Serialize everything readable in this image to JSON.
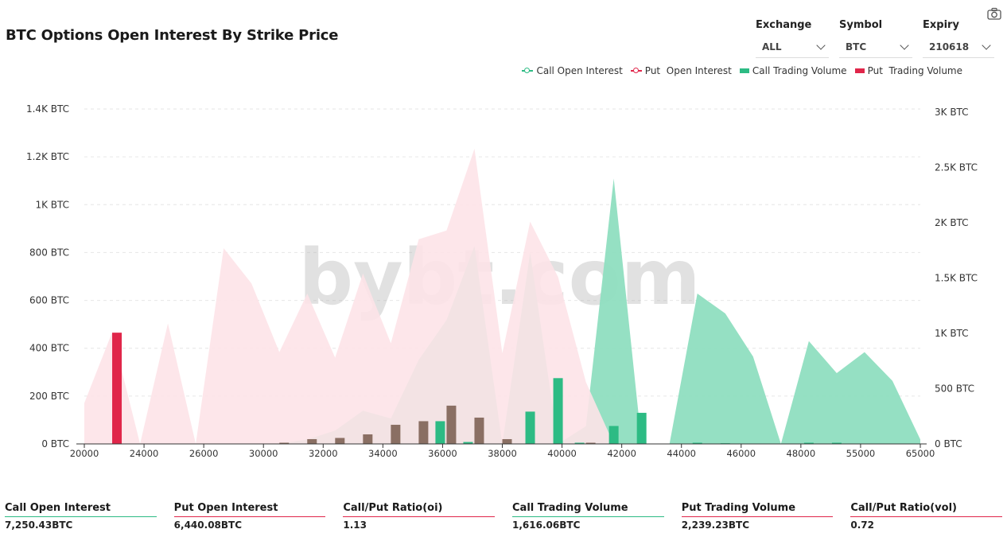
{
  "header": {
    "title": "BTC Options Open Interest By Strike Price"
  },
  "filters": [
    {
      "label": "Exchange",
      "value": "ALL"
    },
    {
      "label": "Symbol",
      "value": "BTC"
    },
    {
      "label": "Expiry",
      "value": "210618"
    }
  ],
  "toolbar": {
    "icon": "camera-icon"
  },
  "colors": {
    "call": "#2dbb84",
    "call_area": "#8fdec0",
    "put": "#e0264a",
    "put_area": "#fde3e8",
    "overlap": "#8a6f63"
  },
  "watermark": "bybt.com",
  "legend": [
    {
      "label": "Call Open Interest",
      "kind": "line",
      "color": "#2dbb84"
    },
    {
      "label": "Put  Open Interest",
      "kind": "line",
      "color": "#e0264a"
    },
    {
      "label": "Call Trading Volume",
      "kind": "box",
      "color": "#2dbb84"
    },
    {
      "label": "Put  Trading Volume",
      "kind": "box",
      "color": "#e0264a"
    }
  ],
  "chart_data": {
    "type": "area",
    "x_tick_labels": [
      "20000",
      "24000",
      "26000",
      "30000",
      "32000",
      "34000",
      "36000",
      "38000",
      "40000",
      "42000",
      "44000",
      "46000",
      "48000",
      "55000",
      "65000"
    ],
    "strikes": [
      "20000",
      "23000",
      "24000",
      "25000",
      "26000",
      "29000",
      "30000",
      "31000",
      "32000",
      "33000",
      "34000",
      "35000",
      "36000",
      "37000",
      "38000",
      "38500",
      "39000",
      "40000",
      "40500",
      "41000",
      "42000",
      "43000",
      "44000",
      "45000",
      "46000",
      "47000",
      "48000",
      "50000",
      "52000",
      "60000",
      "65000"
    ],
    "y_left": {
      "unit": "BTC",
      "ticks": [
        "0 BTC",
        "200 BTC",
        "400 BTC",
        "600 BTC",
        "800 BTC",
        "1K BTC",
        "1.2K BTC",
        "1.4K BTC"
      ],
      "ylim": [
        0,
        1400
      ]
    },
    "y_right": {
      "unit": "BTC",
      "ticks": [
        "0 BTC",
        "500 BTC",
        "1K BTC",
        "1.5K BTC",
        "2K BTC",
        "2.5K BTC",
        "3K BTC"
      ],
      "ylim": [
        0,
        3000
      ]
    },
    "series": [
      {
        "name": "Call Open Interest",
        "kind": "area",
        "axis": "right",
        "values": [
          0,
          0,
          0,
          0,
          0,
          0,
          0,
          2,
          40,
          120,
          300,
          230,
          760,
          1120,
          1790,
          0,
          1730,
          0,
          160,
          2400,
          0,
          0,
          1360,
          1180,
          790,
          0,
          930,
          640,
          830,
          570,
          40
        ]
      },
      {
        "name": "Put  Open Interest",
        "kind": "area",
        "axis": "right",
        "values": [
          370,
          1010,
          0,
          1090,
          0,
          1770,
          1450,
          830,
          1360,
          780,
          1540,
          910,
          1850,
          1930,
          2670,
          820,
          2010,
          1510,
          560,
          0,
          0,
          0,
          0,
          0,
          0,
          0,
          0,
          0,
          0,
          0,
          0
        ]
      },
      {
        "name": "Call Trading Volume",
        "kind": "bar",
        "axis": "left",
        "values": [
          0,
          0,
          0,
          0,
          0,
          0,
          0,
          0,
          0,
          0,
          0,
          0,
          0,
          95,
          8,
          0,
          135,
          275,
          5,
          75,
          130,
          0,
          5,
          3,
          0,
          0,
          5,
          5,
          0,
          0,
          0
        ]
      },
      {
        "name": "Put  Trading Volume",
        "kind": "bar",
        "axis": "left",
        "values": [
          0,
          465,
          0,
          0,
          0,
          0,
          0,
          5,
          20,
          25,
          40,
          80,
          95,
          160,
          110,
          20,
          0,
          0,
          5,
          0,
          0,
          0,
          0,
          0,
          0,
          0,
          0,
          0,
          0,
          0,
          0
        ]
      }
    ]
  },
  "stats": [
    {
      "label": "Call Open Interest",
      "value": "7,250.43BTC",
      "accent": "#2dbb84"
    },
    {
      "label": "Put Open Interest",
      "value": "6,440.08BTC",
      "accent": "#e0264a"
    },
    {
      "label": "Call/Put Ratio(oi)",
      "value": "1.13",
      "accent": "#e0264a"
    },
    {
      "label": "Call Trading Volume",
      "value": "1,616.06BTC",
      "accent": "#2dbb84"
    },
    {
      "label": "Put Trading Volume",
      "value": "2,239.23BTC",
      "accent": "#e0264a"
    },
    {
      "label": "Call/Put Ratio(vol)",
      "value": "0.72",
      "accent": "#e0264a"
    }
  ]
}
